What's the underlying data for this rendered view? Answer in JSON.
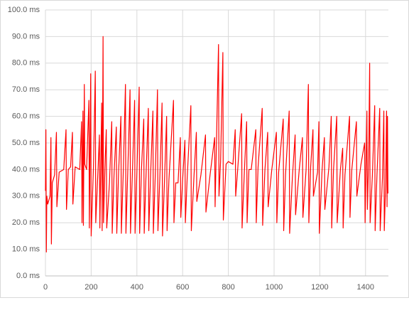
{
  "chart_data": {
    "type": "line",
    "color": "#ff0000",
    "grid": true,
    "xlim": [
      0,
      1500
    ],
    "xticks": [
      0,
      200,
      400,
      600,
      800,
      1000,
      1200,
      1400
    ],
    "ylim": [
      0,
      100
    ],
    "yticks": [
      {
        "value": 0,
        "label": "0.0 ms"
      },
      {
        "value": 10,
        "label": "10.0 ms"
      },
      {
        "value": 20,
        "label": "20.0 ms"
      },
      {
        "value": 30,
        "label": "30.0 ms"
      },
      {
        "value": 40,
        "label": "40.0 ms"
      },
      {
        "value": 50,
        "label": "50.0 ms"
      },
      {
        "value": 60,
        "label": "60.0 ms"
      },
      {
        "value": 70,
        "label": "70.0 ms"
      },
      {
        "value": 80,
        "label": "80.0 ms"
      },
      {
        "value": 90,
        "label": "90.0 ms"
      },
      {
        "value": 100,
        "label": "100.0 ms"
      }
    ],
    "x": [
      0,
      2,
      4,
      6,
      10,
      20,
      24,
      26,
      30,
      40,
      48,
      50,
      60,
      80,
      90,
      92,
      100,
      110,
      118,
      120,
      130,
      150,
      158,
      160,
      164,
      166,
      170,
      172,
      180,
      190,
      192,
      198,
      200,
      210,
      218,
      220,
      230,
      236,
      238,
      246,
      248,
      252,
      254,
      260,
      266,
      268,
      280,
      290,
      292,
      300,
      310,
      312,
      320,
      330,
      332,
      340,
      350,
      352,
      360,
      370,
      372,
      380,
      390,
      392,
      400,
      410,
      412,
      420,
      430,
      432,
      440,
      450,
      452,
      460,
      470,
      472,
      480,
      490,
      492,
      500,
      510,
      512,
      520,
      530,
      532,
      540,
      560,
      562,
      570,
      580,
      590,
      592,
      600,
      610,
      612,
      620,
      636,
      638,
      650,
      660,
      662,
      680,
      700,
      702,
      720,
      740,
      742,
      757,
      759,
      766,
      776,
      778,
      790,
      800,
      820,
      830,
      832,
      840,
      858,
      860,
      870,
      880,
      882,
      890,
      900,
      920,
      922,
      930,
      948,
      950,
      960,
      972,
      974,
      990,
      1010,
      1012,
      1020,
      1040,
      1042,
      1050,
      1066,
      1068,
      1080,
      1092,
      1094,
      1110,
      1124,
      1126,
      1140,
      1150,
      1152,
      1160,
      1170,
      1172,
      1190,
      1196,
      1198,
      1210,
      1220,
      1222,
      1240,
      1250,
      1252,
      1260,
      1274,
      1276,
      1290,
      1300,
      1302,
      1310,
      1330,
      1332,
      1340,
      1360,
      1362,
      1380,
      1396,
      1398,
      1406,
      1408,
      1414,
      1418,
      1420,
      1430,
      1440,
      1442,
      1450,
      1462,
      1464,
      1474,
      1480,
      1482,
      1488,
      1492,
      1494,
      1496,
      1498
    ],
    "values": [
      32,
      55,
      9,
      30,
      27,
      30,
      52,
      12,
      35,
      38,
      54,
      26,
      39,
      40,
      55,
      25,
      40,
      41,
      54,
      27,
      41,
      40,
      58,
      20,
      62,
      19,
      72,
      42,
      40,
      66,
      18,
      76,
      15,
      41,
      77,
      20,
      40,
      53,
      18,
      65,
      17,
      90,
      20,
      40,
      55,
      18,
      35,
      58,
      16,
      38,
      56,
      16,
      39,
      60,
      16,
      38,
      72,
      16,
      39,
      70,
      16,
      38,
      66,
      16,
      39,
      71,
      16,
      40,
      59,
      16,
      38,
      63,
      17,
      38,
      62,
      16,
      37,
      70,
      17,
      36,
      65,
      15,
      34,
      60,
      17,
      36,
      66,
      20,
      35,
      35,
      52,
      22,
      36,
      51,
      20,
      37,
      64,
      17,
      38,
      54,
      28,
      38,
      53,
      24,
      38,
      52,
      26,
      87,
      30,
      43,
      84,
      21,
      42,
      43,
      42,
      55,
      30,
      39,
      61,
      18,
      39,
      58,
      20,
      40,
      40,
      55,
      20,
      41,
      63,
      19,
      40,
      54,
      26,
      40,
      54,
      20,
      39,
      59,
      17,
      38,
      62,
      16,
      37,
      53,
      23,
      40,
      52,
      22,
      40,
      72,
      20,
      41,
      55,
      30,
      39,
      58,
      16,
      40,
      52,
      25,
      41,
      60,
      18,
      40,
      60,
      20,
      40,
      48,
      18,
      38,
      60,
      22,
      40,
      58,
      30,
      42,
      50,
      20,
      62,
      25,
      45,
      80,
      20,
      38,
      64,
      17,
      38,
      63,
      17,
      37,
      62,
      17,
      35,
      62,
      26,
      60,
      31
    ]
  }
}
